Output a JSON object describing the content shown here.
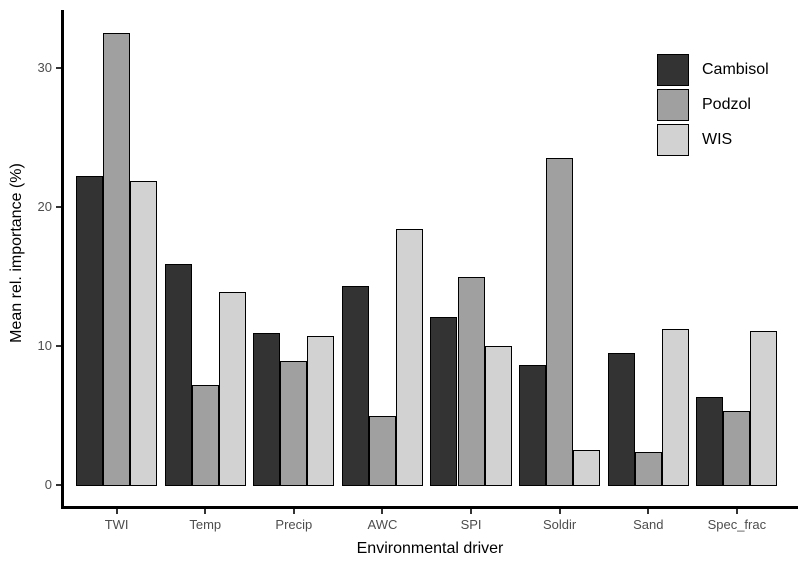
{
  "figure": {
    "background": "#ffffff"
  },
  "chart_data": {
    "type": "bar",
    "title": "",
    "xlabel": "Environmental driver",
    "ylabel": "Mean rel. importance (%)",
    "categories": [
      "TWI",
      "Temp",
      "Precip",
      "AWC",
      "SPI",
      "Soldir",
      "Sand",
      "Spec_frac"
    ],
    "series": [
      {
        "name": "Cambisol",
        "color": "#333333",
        "values": [
          22.2,
          15.9,
          10.9,
          14.3,
          12.1,
          8.6,
          9.5,
          6.3
        ]
      },
      {
        "name": "Podzol",
        "color": "#a0a0a0",
        "values": [
          32.5,
          7.2,
          8.9,
          5.0,
          15.0,
          23.5,
          2.4,
          5.3
        ]
      },
      {
        "name": "WIS",
        "color": "#d2d2d2",
        "values": [
          21.9,
          13.9,
          10.7,
          18.4,
          10.0,
          2.5,
          11.2,
          11.1
        ]
      }
    ],
    "ylim": [
      0,
      34
    ],
    "y_ticks": [
      0,
      10,
      20,
      30
    ],
    "grid": "off",
    "legend_position": "top-right",
    "bar_outline_color": "#000000",
    "axis_color": "#000000",
    "tick_mark_color": "#333333",
    "tick_label_color": "#4d4d4d"
  }
}
